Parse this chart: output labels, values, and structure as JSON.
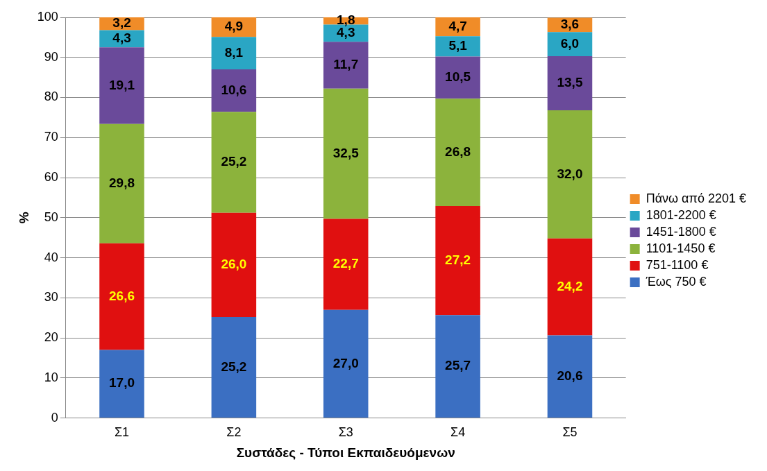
{
  "chart_data": {
    "type": "bar",
    "stacked": true,
    "xlabel": "Συστάδες - Τύποι Εκπαιδευόμενων",
    "ylabel": "%",
    "categories": [
      "Σ1",
      "Σ2",
      "Σ3",
      "Σ4",
      "Σ5"
    ],
    "series": [
      {
        "name": "Έως 750 €",
        "color": "#3b6fc2",
        "values": [
          17.0,
          25.2,
          27.0,
          25.7,
          20.6
        ],
        "value_labels": [
          "17,0",
          "25,2",
          "27,0",
          "25,7",
          "20,6"
        ]
      },
      {
        "name": "751-1100 €",
        "color": "#e01010",
        "values": [
          26.6,
          26.0,
          22.7,
          27.2,
          24.2
        ],
        "value_labels": [
          "26,6",
          "26,0",
          "22,7",
          "27,2",
          "24,2"
        ]
      },
      {
        "name": "1101-1450 €",
        "color": "#8cb33c",
        "values": [
          29.8,
          25.2,
          32.5,
          26.8,
          32.0
        ],
        "value_labels": [
          "29,8",
          "25,2",
          "32,5",
          "26,8",
          "32,0"
        ]
      },
      {
        "name": "1451-1800 €",
        "color": "#6a4a9a",
        "values": [
          19.1,
          10.6,
          11.7,
          10.5,
          13.5
        ],
        "value_labels": [
          "19,1",
          "10,6",
          "11,7",
          "10,5",
          "13,5"
        ]
      },
      {
        "name": "1801-2200 €",
        "color": "#2aa6c4",
        "values": [
          4.3,
          8.1,
          4.3,
          5.1,
          6.0
        ],
        "value_labels": [
          "4,3",
          "8,1",
          "4,3",
          "5,1",
          "6,0"
        ]
      },
      {
        "name": "Πάνω από 2201 €",
        "color": "#f08c28",
        "values": [
          3.2,
          4.9,
          1.8,
          4.7,
          3.6
        ],
        "value_labels": [
          "3,2",
          "4,9",
          "1,8",
          "4,7",
          "3,6"
        ]
      }
    ],
    "ylim": [
      0,
      100
    ],
    "yticks": [
      0,
      10,
      20,
      30,
      40,
      50,
      60,
      70,
      80,
      90,
      100
    ],
    "grid": "y",
    "legend": "right"
  }
}
